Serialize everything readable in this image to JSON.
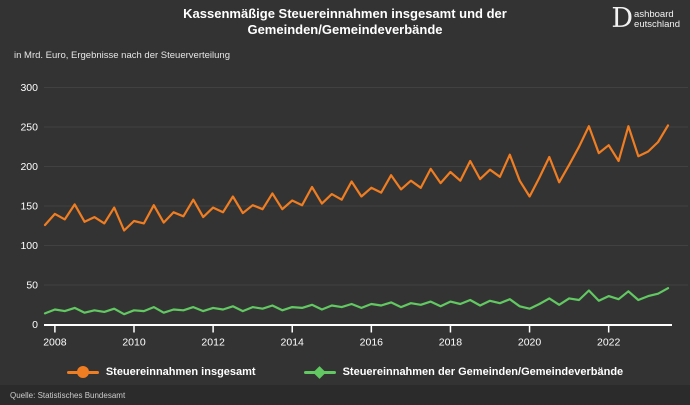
{
  "header": {
    "title_line1": "Kassenmäßige Steuereinnahmen insgesamt und der",
    "title_line2": "Gemeinden/Gemeindeverbände",
    "subtitle": "in Mrd. Euro, Ergebnisse nach der Steuerverteilung"
  },
  "logo": {
    "initial": "D",
    "line1": "ashboard",
    "line2": "eutschland"
  },
  "footer": {
    "source": "Quelle: Statistisches Bundesamt"
  },
  "colors": {
    "background": "#333333",
    "footer_background": "#2b2b2b",
    "text": "#ffffff",
    "gridline": "#414141",
    "axis": "#ffffff",
    "series_total": "#ef7d22",
    "series_municipal": "#62c862"
  },
  "chart_data": {
    "type": "line",
    "title": "Kassenmäßige Steuereinnahmen insgesamt und der Gemeinden/Gemeindeverbände",
    "subtitle": "in Mrd. Euro, Ergebnisse nach der Steuerverteilung",
    "x_frequency": "quarterly",
    "x_range": [
      "2008-Q1",
      "2023-Q4"
    ],
    "x_tick_years": [
      "2008",
      "2010",
      "2012",
      "2014",
      "2016",
      "2018",
      "2020",
      "2022"
    ],
    "ylim": [
      0,
      300
    ],
    "y_ticks": [
      0,
      50,
      100,
      150,
      200,
      250,
      300
    ],
    "grid": "horizontal",
    "legend_position": "bottom",
    "series": [
      {
        "name": "Steuereinnahmen insgesamt",
        "color": "#ef7d22",
        "marker": "circle",
        "values": [
          126,
          140,
          133,
          152,
          130,
          136,
          128,
          148,
          119,
          131,
          128,
          151,
          129,
          142,
          137,
          158,
          136,
          148,
          142,
          162,
          141,
          151,
          146,
          166,
          146,
          157,
          151,
          174,
          153,
          165,
          158,
          181,
          162,
          173,
          167,
          189,
          171,
          182,
          173,
          197,
          179,
          193,
          182,
          207,
          184,
          196,
          187,
          215,
          182,
          162,
          186,
          212,
          180,
          202,
          225,
          251,
          217,
          227,
          207,
          251,
          213,
          219,
          231,
          252
        ]
      },
      {
        "name": "Steuereinnahmen der Gemeinden/Gemeindeverbände",
        "color": "#62c862",
        "marker": "diamond",
        "values": [
          14,
          19,
          17,
          21,
          15,
          18,
          16,
          20,
          13,
          18,
          17,
          22,
          15,
          19,
          18,
          22,
          17,
          21,
          19,
          23,
          17,
          22,
          20,
          24,
          18,
          22,
          21,
          25,
          19,
          24,
          22,
          26,
          21,
          26,
          24,
          28,
          22,
          27,
          25,
          29,
          23,
          29,
          26,
          31,
          24,
          30,
          27,
          32,
          23,
          20,
          26,
          33,
          25,
          33,
          31,
          43,
          30,
          36,
          32,
          42,
          31,
          36,
          39,
          46
        ]
      }
    ]
  }
}
